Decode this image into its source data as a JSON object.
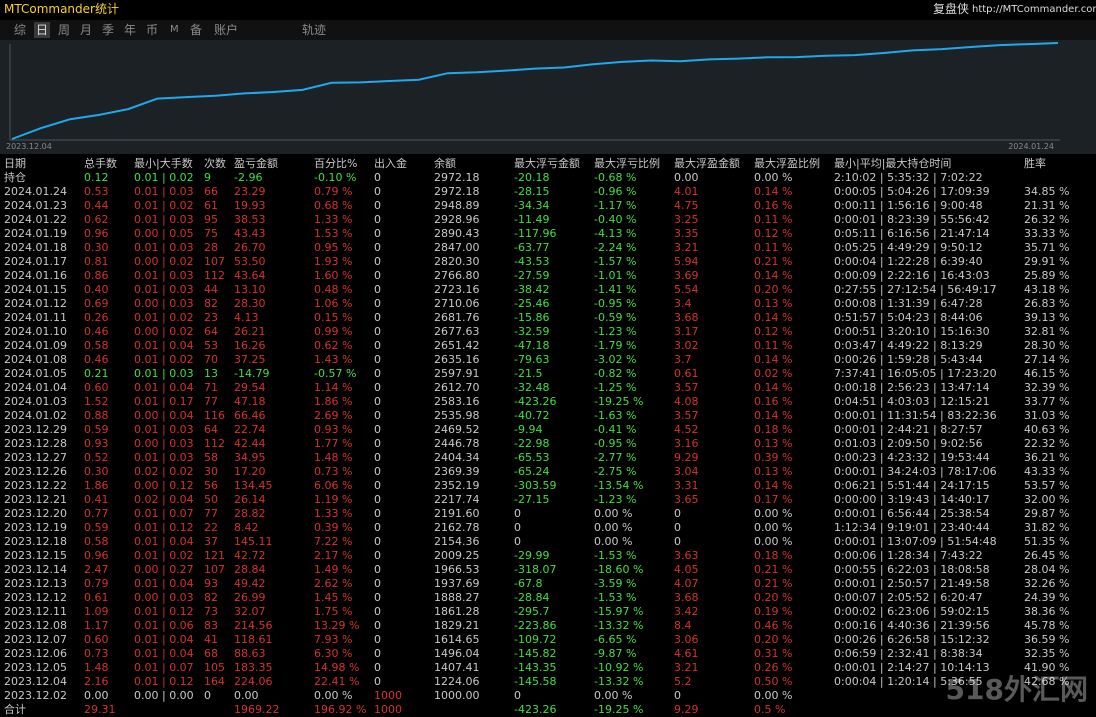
{
  "header": {
    "title": "MTCommander统计",
    "brand": "复盘侠",
    "url": "http://MTCommander.com"
  },
  "tabs": [
    "综",
    "日",
    "周",
    "月",
    "季",
    "年",
    "币",
    "M",
    "备",
    "账户",
    "轨迹"
  ],
  "active_tab": 1,
  "chart": {
    "start_label": "2023.12.04",
    "end_label": "2024.01.24",
    "color": "#1fa8f0"
  },
  "table": {
    "columns": [
      "日期",
      "总手数",
      "最小|大手数",
      "次数",
      "盈亏金额",
      "百分比%",
      "出入金",
      "余额",
      "最大浮亏金额",
      "最大浮亏比例",
      "最大浮盈金额",
      "最大浮盈比例",
      "最小|平均|最大持仓时间",
      "胜率"
    ],
    "holding": [
      "持仓",
      "0.12",
      "0.01 | 0.02",
      "9",
      "-2.96",
      "-0.10 %",
      "0",
      "2972.18",
      "-20.18",
      "-0.68 %",
      "0.00",
      "0.00 %",
      "2:10:02 | 5:35:32 | 7:02:22",
      null
    ],
    "rows": [
      [
        "2024.01.24",
        "0.53",
        "0.01 | 0.03",
        "66",
        "23.29",
        "0.79 %",
        "0",
        "2972.18",
        "-28.15",
        "-0.96 %",
        "4.01",
        "0.14 %",
        "0:00:05 | 5:04:26 | 17:09:39",
        "34.85 %"
      ],
      [
        "2024.01.23",
        "0.44",
        "0.01 | 0.02",
        "61",
        "19.93",
        "0.68 %",
        "0",
        "2948.89",
        "-34.34",
        "-1.17 %",
        "4.75",
        "0.16 %",
        "0:00:11 | 1:56:16 | 9:00:48",
        "21.31 %"
      ],
      [
        "2024.01.22",
        "0.62",
        "0.01 | 0.03",
        "95",
        "38.53",
        "1.33 %",
        "0",
        "2928.96",
        "-11.49",
        "-0.40 %",
        "3.25",
        "0.11 %",
        "0:00:01 | 8:23:39 | 55:56:42",
        "26.32 %"
      ],
      [
        "2024.01.19",
        "0.96",
        "0.00 | 0.05",
        "75",
        "43.43",
        "1.53 %",
        "0",
        "2890.43",
        "-117.96",
        "-4.13 %",
        "3.35",
        "0.12 %",
        "0:05:11 | 6:16:56 | 21:47:14",
        "33.33 %"
      ],
      [
        "2024.01.18",
        "0.30",
        "0.01 | 0.03",
        "28",
        "26.70",
        "0.95 %",
        "0",
        "2847.00",
        "-63.77",
        "-2.24 %",
        "3.21",
        "0.11 %",
        "0:05:25 | 4:49:29 | 9:50:12",
        "35.71 %"
      ],
      [
        "2024.01.17",
        "0.81",
        "0.00 | 0.02",
        "107",
        "53.50",
        "1.93 %",
        "0",
        "2820.30",
        "-43.53",
        "-1.57 %",
        "5.94",
        "0.21 %",
        "0:00:04 | 1:22:28 | 6:39:40",
        "29.91 %"
      ],
      [
        "2024.01.16",
        "0.86",
        "0.01 | 0.03",
        "112",
        "43.64",
        "1.60 %",
        "0",
        "2766.80",
        "-27.59",
        "-1.01 %",
        "3.69",
        "0.14 %",
        "0:00:09 | 2:22:16 | 16:43:03",
        "25.89 %"
      ],
      [
        "2024.01.15",
        "0.40",
        "0.01 | 0.03",
        "44",
        "13.10",
        "0.48 %",
        "0",
        "2723.16",
        "-38.42",
        "-1.41 %",
        "5.54",
        "0.20 %",
        "0:27:55 | 27:12:54 | 56:49:17",
        "43.18 %"
      ],
      [
        "2024.01.12",
        "0.69",
        "0.00 | 0.03",
        "82",
        "28.30",
        "1.06 %",
        "0",
        "2710.06",
        "-25.46",
        "-0.95 %",
        "3.4",
        "0.13 %",
        "0:00:08 | 1:31:39 | 6:47:28",
        "26.83 %"
      ],
      [
        "2024.01.11",
        "0.26",
        "0.01 | 0.02",
        "23",
        "4.13",
        "0.15 %",
        "0",
        "2681.76",
        "-15.86",
        "-0.59 %",
        "3.68",
        "0.14 %",
        "0:51:57 | 5:04:23 | 8:44:06",
        "39.13 %"
      ],
      [
        "2024.01.10",
        "0.46",
        "0.00 | 0.02",
        "64",
        "26.21",
        "0.99 %",
        "0",
        "2677.63",
        "-32.59",
        "-1.23 %",
        "3.17",
        "0.12 %",
        "0:00:51 | 3:20:10 | 15:16:30",
        "32.81 %"
      ],
      [
        "2024.01.09",
        "0.58",
        "0.01 | 0.04",
        "53",
        "16.26",
        "0.62 %",
        "0",
        "2651.42",
        "-47.18",
        "-1.79 %",
        "3.02",
        "0.11 %",
        "0:03:47 | 4:49:22 | 8:13:29",
        "28.30 %"
      ],
      [
        "2024.01.08",
        "0.46",
        "0.01 | 0.02",
        "70",
        "37.25",
        "1.43 %",
        "0",
        "2635.16",
        "-79.63",
        "-3.02 %",
        "3.7",
        "0.14 %",
        "0:00:26 | 1:59:28 | 5:43:44",
        "27.14 %"
      ],
      [
        "2024.01.05",
        "0.21",
        "0.01 | 0.03",
        "13",
        "-14.79",
        "-0.57 %",
        "0",
        "2597.91",
        "-21.5",
        "-0.82 %",
        "0.61",
        "0.02 %",
        "7:37:41 | 16:05:05 | 17:23:20",
        "46.15 %"
      ],
      [
        "2024.01.04",
        "0.60",
        "0.01 | 0.04",
        "71",
        "29.54",
        "1.14 %",
        "0",
        "2612.70",
        "-32.48",
        "-1.25 %",
        "3.57",
        "0.14 %",
        "0:00:18 | 2:56:23 | 13:47:14",
        "32.39 %"
      ],
      [
        "2024.01.03",
        "1.52",
        "0.01 | 0.17",
        "77",
        "47.18",
        "1.86 %",
        "0",
        "2583.16",
        "-423.26",
        "-19.25 %",
        "4.08",
        "0.16 %",
        "0:04:51 | 4:03:03 | 12:15:21",
        "33.77 %"
      ],
      [
        "2024.01.02",
        "0.88",
        "0.00 | 0.04",
        "116",
        "66.46",
        "2.69 %",
        "0",
        "2535.98",
        "-40.72",
        "-1.63 %",
        "3.57",
        "0.14 %",
        "0:00:01 | 11:31:54 | 83:22:36",
        "31.03 %"
      ],
      [
        "2023.12.29",
        "0.59",
        "0.01 | 0.03",
        "64",
        "22.74",
        "0.93 %",
        "0",
        "2469.52",
        "-9.94",
        "-0.41 %",
        "4.52",
        "0.18 %",
        "0:00:01 | 2:44:21 | 8:27:57",
        "40.63 %"
      ],
      [
        "2023.12.28",
        "0.93",
        "0.00 | 0.03",
        "112",
        "42.44",
        "1.77 %",
        "0",
        "2446.78",
        "-22.98",
        "-0.95 %",
        "3.16",
        "0.13 %",
        "0:01:03 | 2:09:50 | 9:02:56",
        "22.32 %"
      ],
      [
        "2023.12.27",
        "0.52",
        "0.01 | 0.03",
        "58",
        "34.95",
        "1.48 %",
        "0",
        "2404.34",
        "-65.53",
        "-2.77 %",
        "9.29",
        "0.39 %",
        "0:00:23 | 4:23:32 | 19:53:44",
        "36.21 %"
      ],
      [
        "2023.12.26",
        "0.30",
        "0.02 | 0.02",
        "30",
        "17.20",
        "0.73 %",
        "0",
        "2369.39",
        "-65.24",
        "-2.75 %",
        "3.04",
        "0.13 %",
        "0:00:01 | 34:24:03 | 78:17:06",
        "43.33 %"
      ],
      [
        "2023.12.22",
        "1.86",
        "0.00 | 0.12",
        "56",
        "134.45",
        "6.06 %",
        "0",
        "2352.19",
        "-303.59",
        "-13.54 %",
        "3.31",
        "0.14 %",
        "0:06:21 | 5:51:44 | 24:17:15",
        "53.57 %"
      ],
      [
        "2023.12.21",
        "0.41",
        "0.02 | 0.04",
        "50",
        "26.14",
        "1.19 %",
        "0",
        "2217.74",
        "-27.15",
        "-1.23 %",
        "3.65",
        "0.17 %",
        "0:00:00 | 3:19:43 | 14:40:17",
        "32.00 %"
      ],
      [
        "2023.12.20",
        "0.77",
        "0.01 | 0.07",
        "77",
        "28.82",
        "1.33 %",
        "0",
        "2191.60",
        "0",
        "0.00 %",
        "0",
        "0.00 %",
        "0:00:01 | 6:56:44 | 25:38:54",
        "29.87 %"
      ],
      [
        "2023.12.19",
        "0.59",
        "0.01 | 0.12",
        "22",
        "8.42",
        "0.39 %",
        "0",
        "2162.78",
        "0",
        "0.00 %",
        "0",
        "0.00 %",
        "1:12:34 | 9:19:01 | 23:40:44",
        "31.82 %"
      ],
      [
        "2023.12.18",
        "0.58",
        "0.01 | 0.04",
        "37",
        "145.11",
        "7.22 %",
        "0",
        "2154.36",
        "0",
        "0.00 %",
        "0",
        "0.00 %",
        "0:00:01 | 13:07:09 | 51:54:48",
        "51.35 %"
      ],
      [
        "2023.12.15",
        "0.96",
        "0.01 | 0.02",
        "121",
        "42.72",
        "2.17 %",
        "0",
        "2009.25",
        "-29.99",
        "-1.53 %",
        "3.63",
        "0.18 %",
        "0:00:06 | 1:28:34 | 7:43:22",
        "26.45 %"
      ],
      [
        "2023.12.14",
        "2.47",
        "0.00 | 0.27",
        "107",
        "28.84",
        "1.49 %",
        "0",
        "1966.53",
        "-318.07",
        "-18.60 %",
        "4.05",
        "0.21 %",
        "0:00:55 | 6:22:03 | 18:08:58",
        "28.04 %"
      ],
      [
        "2023.12.13",
        "0.79",
        "0.01 | 0.04",
        "93",
        "49.42",
        "2.62 %",
        "0",
        "1937.69",
        "-67.8",
        "-3.59 %",
        "4.07",
        "0.21 %",
        "0:00:01 | 2:50:57 | 21:49:58",
        "32.26 %"
      ],
      [
        "2023.12.12",
        "0.61",
        "0.00 | 0.03",
        "82",
        "26.99",
        "1.45 %",
        "0",
        "1888.27",
        "-28.84",
        "-1.53 %",
        "3.68",
        "0.20 %",
        "0:00:07 | 2:05:52 | 6:20:47",
        "24.39 %"
      ],
      [
        "2023.12.11",
        "1.09",
        "0.01 | 0.12",
        "73",
        "32.07",
        "1.75 %",
        "0",
        "1861.28",
        "-295.7",
        "-15.97 %",
        "3.42",
        "0.19 %",
        "0:00:02 | 6:23:06 | 59:02:15",
        "38.36 %"
      ],
      [
        "2023.12.08",
        "1.17",
        "0.01 | 0.06",
        "83",
        "214.56",
        "13.29 %",
        "0",
        "1829.21",
        "-223.86",
        "-13.32 %",
        "8.4",
        "0.46 %",
        "0:00:16 | 4:40:36 | 21:39:56",
        "45.78 %"
      ],
      [
        "2023.12.07",
        "0.60",
        "0.01 | 0.04",
        "41",
        "118.61",
        "7.93 %",
        "0",
        "1614.65",
        "-109.72",
        "-6.65 %",
        "3.06",
        "0.20 %",
        "0:00:26 | 6:26:58 | 15:12:32",
        "36.59 %"
      ],
      [
        "2023.12.06",
        "0.73",
        "0.01 | 0.04",
        "68",
        "88.63",
        "6.30 %",
        "0",
        "1496.04",
        "-145.82",
        "-9.87 %",
        "4.61",
        "0.31 %",
        "0:06:59 | 2:32:41 | 8:38:34",
        "32.35 %"
      ],
      [
        "2023.12.05",
        "1.48",
        "0.01 | 0.07",
        "105",
        "183.35",
        "14.98 %",
        "0",
        "1407.41",
        "-143.35",
        "-10.92 %",
        "3.21",
        "0.26 %",
        "0:00:01 | 2:14:27 | 10:14:13",
        "41.90 %"
      ],
      [
        "2023.12.04",
        "2.16",
        "0.01 | 0.12",
        "164",
        "224.06",
        "22.41 %",
        "0",
        "1224.06",
        "-145.58",
        "-13.32 %",
        "5.2",
        "0.50 %",
        "0:00:04 | 1:20:14 | 5:36:55",
        "42.68 %"
      ],
      [
        "2023.12.02",
        "0.00",
        "0.00 | 0.00",
        "0",
        "0.00",
        "0.00 %",
        "1000",
        "1000.00",
        "0",
        "0.00 %",
        "0",
        "0.00 %",
        null,
        null
      ]
    ],
    "total": [
      "合计",
      "29.31",
      null,
      null,
      "1969.22",
      "196.92 %",
      "1000",
      null,
      "-423.26",
      "-19.25 %",
      "9.29",
      "0.5 %",
      null,
      null
    ]
  },
  "watermark": "518外汇网"
}
